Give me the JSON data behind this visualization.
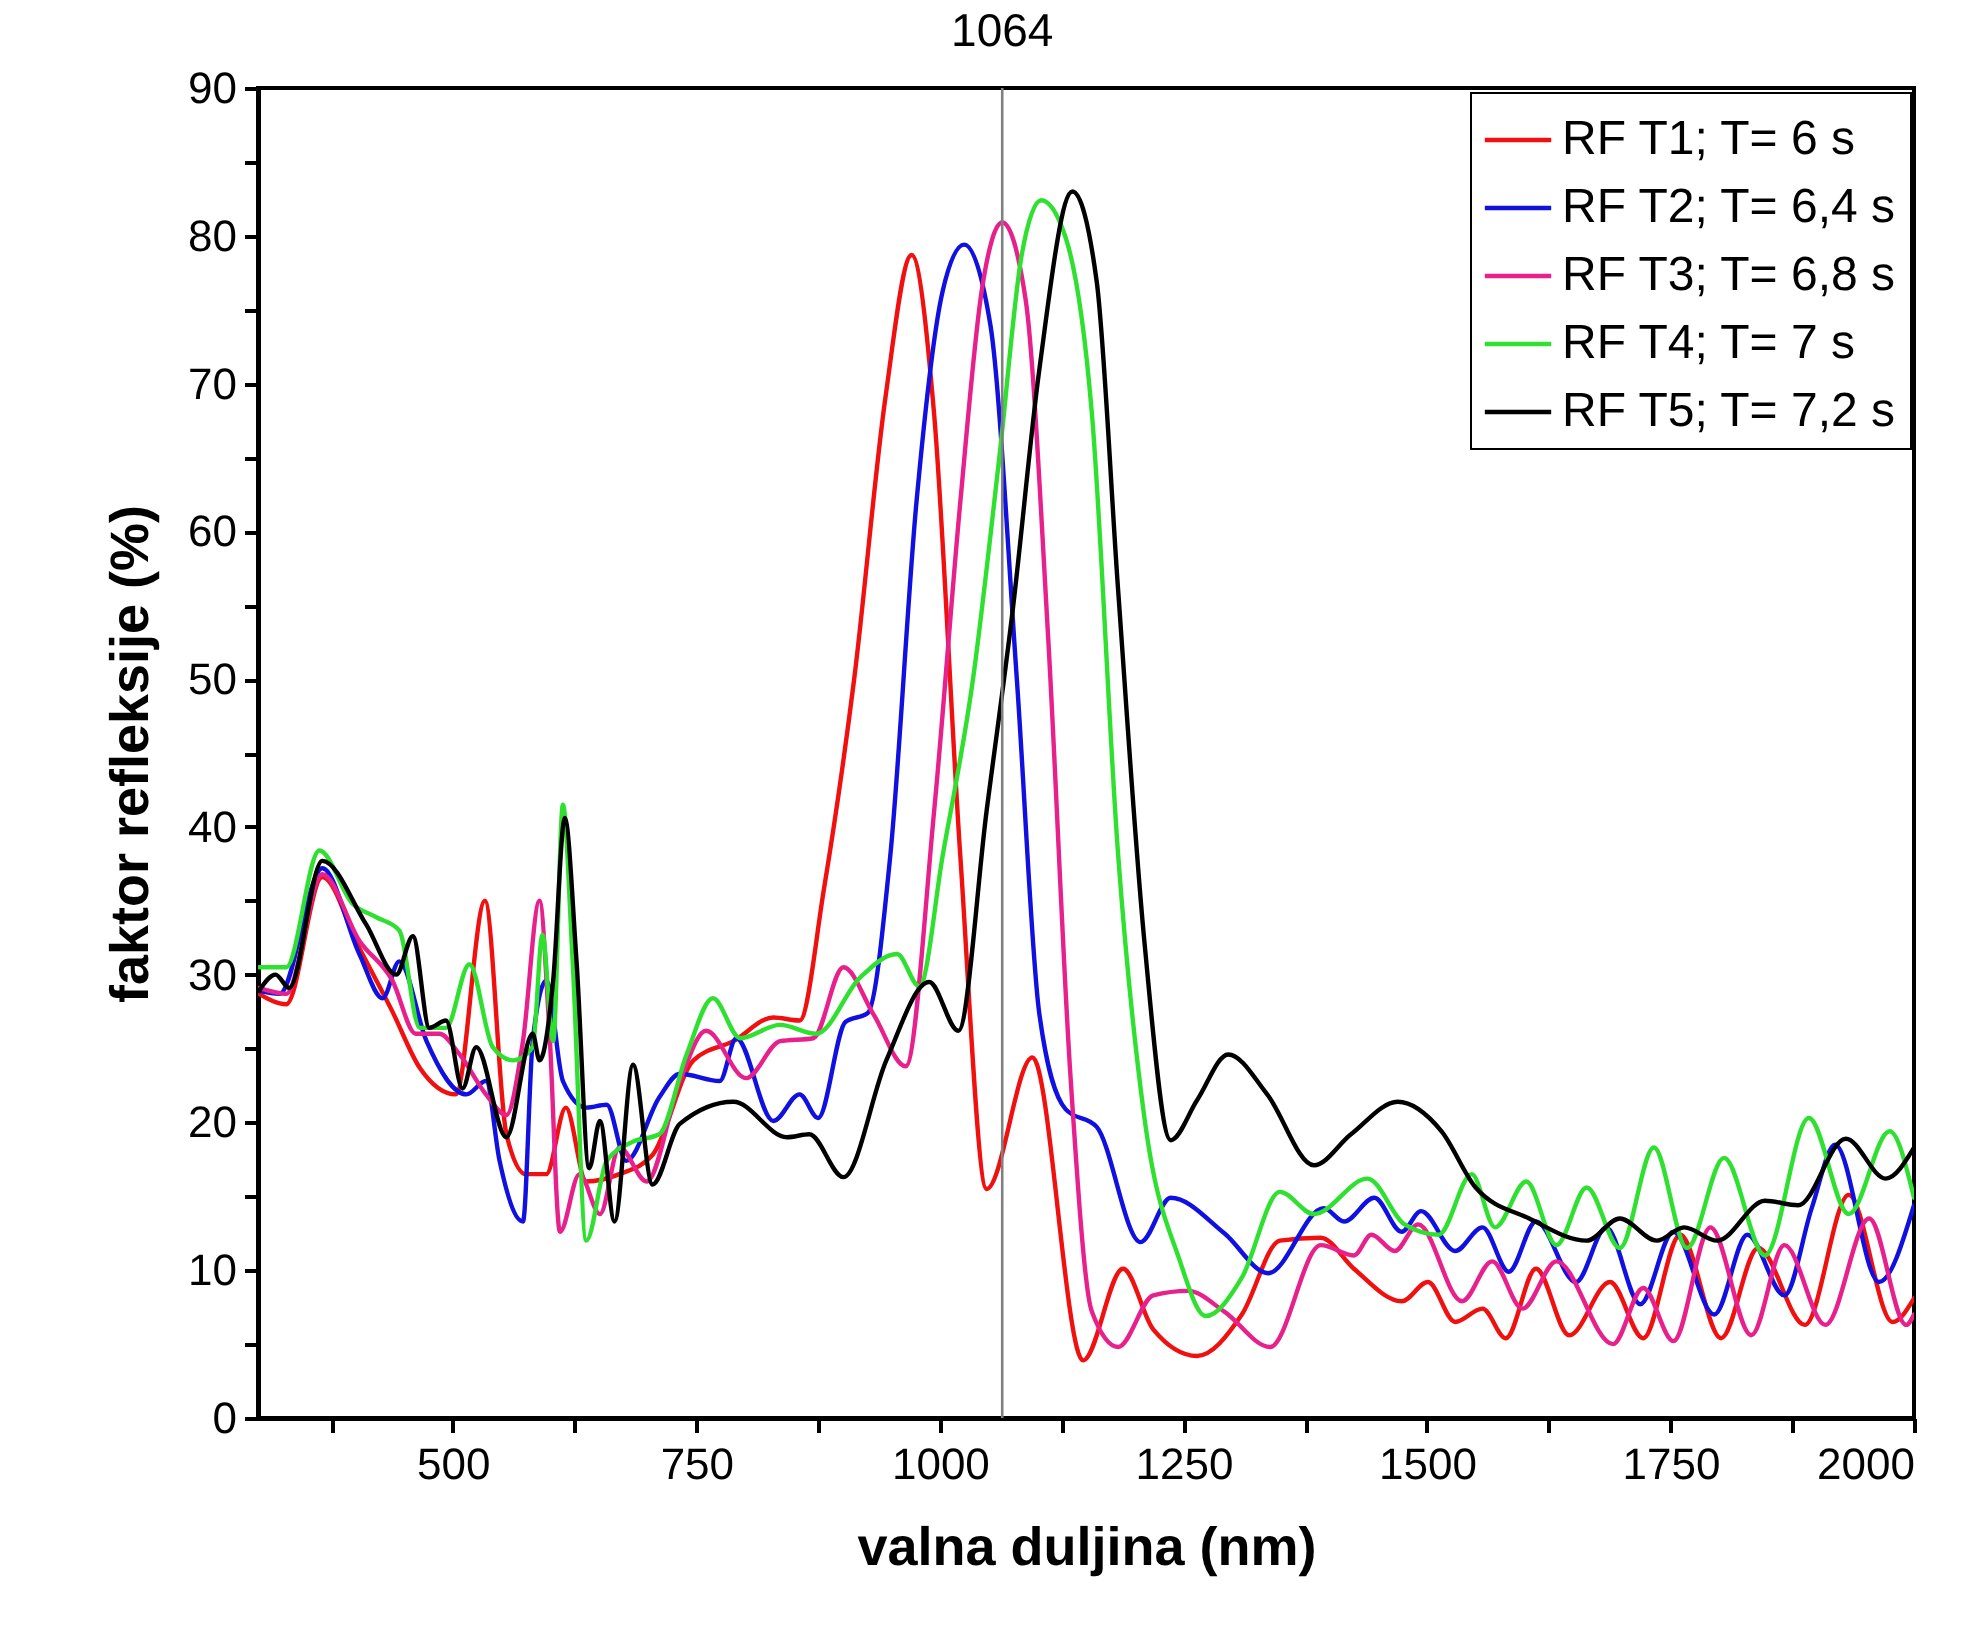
{
  "chart_data": {
    "type": "line",
    "xlabel": "valna duljina (nm)",
    "ylabel": "faktor refleksije (%)",
    "xlim": [
      300,
      2000
    ],
    "ylim": [
      0,
      90
    ],
    "xticks": [
      {
        "value": 375,
        "label": null
      },
      500,
      {
        "value": 625,
        "label": null
      },
      750,
      {
        "value": 875,
        "label": null
      },
      1000,
      {
        "value": 1125,
        "label": null
      },
      1250,
      {
        "value": 1375,
        "label": null
      },
      1500,
      {
        "value": 1625,
        "label": null
      },
      1750,
      {
        "value": 1875,
        "label": null
      },
      2000
    ],
    "yticks": [
      0,
      {
        "value": 5,
        "label": null
      },
      10,
      {
        "value": 15,
        "label": null
      },
      20,
      {
        "value": 25,
        "label": null
      },
      30,
      {
        "value": 35,
        "label": null
      },
      40,
      {
        "value": 45,
        "label": null
      },
      50,
      {
        "value": 55,
        "label": null
      },
      60,
      {
        "value": 65,
        "label": null
      },
      70,
      {
        "value": 75,
        "label": null
      },
      80,
      {
        "value": 85,
        "label": null
      },
      90
    ],
    "grid": false,
    "legend": "top right",
    "line_style": "solid",
    "marker": "none",
    "ref_lines": [
      {
        "axis": "x",
        "value": 1064,
        "label": "1064",
        "color": "#808080"
      }
    ],
    "series": [
      {
        "name": "RF T1; T= 6 s",
        "color": "#f01010",
        "x": [
          301,
          329,
          366,
          404,
          438,
          466,
          503,
          533,
          555,
          575,
          596,
          616,
          637,
          671,
          705,
          747,
          788,
          829,
          856,
          881,
          912,
          944,
          971,
          994,
          1021,
          1048,
          1095,
          1147,
          1188,
          1219,
          1264,
          1310,
          1349,
          1391,
          1425,
          1474,
          1501,
          1529,
          1557,
          1581,
          1612,
          1646,
          1688,
          1722,
          1760,
          1802,
          1840,
          1888,
          1933,
          1978,
          2000
        ],
        "values": [
          28.7,
          28,
          36.6,
          31.8,
          27.5,
          23.7,
          21.9,
          35,
          19.2,
          16.5,
          16.5,
          21,
          16,
          16.5,
          17.8,
          24.2,
          25.5,
          27.1,
          26.9,
          35.8,
          50,
          69,
          78.7,
          68,
          38,
          15.5,
          24.4,
          3.9,
          10.1,
          6,
          4.2,
          7,
          12,
          12.2,
          10.1,
          7.9,
          9.2,
          6.5,
          7.4,
          5.4,
          10.1,
          5.6,
          9.2,
          5.4,
          12.4,
          5.4,
          11.5,
          6.3,
          15.1,
          6.5,
          8.1
        ]
      },
      {
        "name": "RF T2; T= 6,4 s",
        "color": "#1010e0",
        "x": [
          301,
          322,
          366,
          404,
          428,
          445,
          473,
          514,
          534,
          548,
          572,
          582,
          596,
          613,
          637,
          658,
          678,
          712,
          733,
          774,
          791,
          829,
          856,
          875,
          903,
          926,
          949,
          976,
          1003,
          1025,
          1052,
          1079,
          1102,
          1129,
          1161,
          1206,
          1237,
          1292,
          1337,
          1394,
          1415,
          1446,
          1474,
          1494,
          1529,
          1557,
          1584,
          1612,
          1653,
          1684,
          1719,
          1753,
          1795,
          1829,
          1867,
          1895,
          1919,
          1964,
          2000
        ],
        "values": [
          28.9,
          28.7,
          37.2,
          31.4,
          28.4,
          30.9,
          25.5,
          21.9,
          22.8,
          17.4,
          13.3,
          25.5,
          29.6,
          22.8,
          21,
          21.2,
          17.4,
          21.7,
          23.3,
          22.8,
          25.7,
          20.1,
          21.9,
          20.3,
          26.8,
          27.4,
          38,
          62,
          76.3,
          79.4,
          73.9,
          50,
          27.4,
          20.9,
          19.7,
          11.9,
          14.9,
          12.5,
          9.8,
          14.2,
          13.3,
          14.9,
          12.6,
          14,
          11.3,
          12.9,
          9.9,
          13.3,
          9.2,
          12.9,
          7.7,
          12.6,
          7,
          12.4,
          8.3,
          14.2,
          18.5,
          9.2,
          14.4
        ]
      },
      {
        "name": "RF T3; T= 6,8 s",
        "color": "#e8208c",
        "x": [
          301,
          329,
          366,
          404,
          438,
          462,
          486,
          507,
          534,
          555,
          572,
          589,
          599,
          610,
          630,
          651,
          671,
          699,
          733,
          760,
          801,
          836,
          870,
          901,
          932,
          965,
          994,
          1021,
          1043,
          1064,
          1088,
          1111,
          1134,
          1156,
          1183,
          1219,
          1255,
          1292,
          1339,
          1391,
          1425,
          1443,
          1467,
          1491,
          1536,
          1567,
          1598,
          1633,
          1691,
          1722,
          1753,
          1791,
          1833,
          1867,
          1909,
          1954,
          1992,
          2000
        ],
        "values": [
          29.1,
          28.7,
          36.8,
          32.3,
          29.6,
          26,
          26,
          24.6,
          21.9,
          20.5,
          25.5,
          35,
          26.4,
          12.6,
          16.5,
          13.8,
          18.3,
          16,
          22.8,
          26.2,
          23,
          25.5,
          25.7,
          30.5,
          27.3,
          23.8,
          41,
          62,
          76.3,
          80.9,
          75.7,
          53,
          23.2,
          7.2,
          4.8,
          8.3,
          8.6,
          7.2,
          4.8,
          11.7,
          11,
          12.4,
          11.3,
          13.1,
          7.9,
          10.6,
          7.4,
          10.6,
          5,
          8.8,
          5.2,
          12.9,
          5.6,
          11.7,
          6.3,
          13.5,
          6.3,
          7
        ]
      },
      {
        "name": "RF T4; T= 7 s",
        "color": "#30e030",
        "x": [
          301,
          329,
          363,
          397,
          421,
          445,
          466,
          493,
          517,
          541,
          562,
          582,
          592,
          603,
          613,
          623,
          637,
          658,
          685,
          712,
          740,
          767,
          795,
          836,
          873,
          918,
          956,
          979,
          1003,
          1034,
          1061,
          1084,
          1104,
          1129,
          1156,
          1183,
          1210,
          1246,
          1273,
          1310,
          1349,
          1384,
          1439,
          1477,
          1512,
          1546,
          1570,
          1602,
          1633,
          1664,
          1698,
          1733,
          1767,
          1805,
          1847,
          1892,
          1933,
          1975,
          2000
        ],
        "values": [
          30.5,
          30.5,
          38.4,
          34.8,
          33.9,
          33,
          26.4,
          26.4,
          30.7,
          25.1,
          24.2,
          25.1,
          32.7,
          25.5,
          41.5,
          30.9,
          12,
          17.4,
          18.7,
          19.2,
          24.6,
          28.4,
          25.7,
          26.6,
          26,
          29.8,
          31.4,
          29.2,
          38.1,
          50,
          65,
          78.7,
          82.4,
          79.9,
          68,
          38.1,
          20.3,
          10.7,
          6.9,
          9.5,
          15.3,
          13.8,
          16.2,
          13.1,
          12.4,
          16.5,
          12.9,
          16,
          11.7,
          15.6,
          11.5,
          18.3,
          11.5,
          17.6,
          11,
          20.3,
          13.8,
          19.4,
          14.9
        ]
      },
      {
        "name": "RF T5; T= 7,2 s",
        "color": "#000000",
        "x": [
          301,
          318,
          332,
          366,
          411,
          442,
          459,
          476,
          493,
          510,
          524,
          555,
          582,
          589,
          603,
          615,
          627,
          640,
          651,
          666,
          685,
          705,
          733,
          788,
          843,
          866,
          901,
          945,
          989,
          1019,
          1048,
          1075,
          1102,
          1136,
          1161,
          1183,
          1210,
          1237,
          1264,
          1296,
          1336,
          1384,
          1422,
          1470,
          1515,
          1550,
          1605,
          1664,
          1698,
          1736,
          1764,
          1798,
          1847,
          1881,
          1930,
          1971,
          2000
        ],
        "values": [
          28.9,
          30,
          29.1,
          37.7,
          33.4,
          30,
          32.6,
          26.4,
          26.9,
          22.3,
          25.1,
          19,
          26,
          24.2,
          29.6,
          40.6,
          30.9,
          16.9,
          20.1,
          13.3,
          23.9,
          15.8,
          19.9,
          21.4,
          19,
          19.2,
          16.3,
          24.2,
          29.5,
          26.2,
          41.1,
          54.8,
          70.9,
          83,
          76.9,
          56,
          32.2,
          18.8,
          21.5,
          24.6,
          21.9,
          17.1,
          19.2,
          21.4,
          19.4,
          15.6,
          13.5,
          12,
          13.5,
          12,
          12.9,
          12,
          14.7,
          14.4,
          18.9,
          16.2,
          18.3
        ]
      }
    ]
  }
}
